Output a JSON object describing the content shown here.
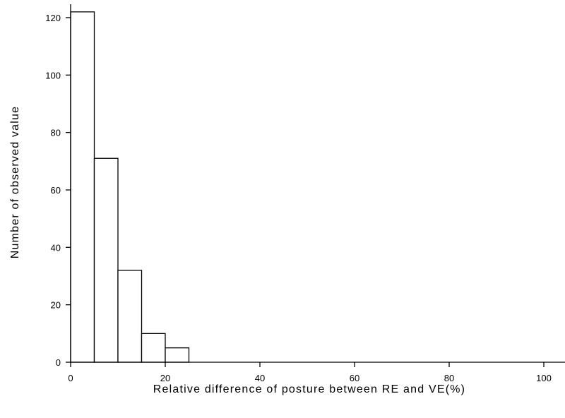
{
  "chart_data": {
    "type": "bar",
    "title": "",
    "xlabel": "Relative difference of posture between RE and VE(%)",
    "ylabel": "Number of observed value",
    "xlim": [
      0,
      105
    ],
    "ylim": [
      0,
      125
    ],
    "x_ticks": [
      0,
      20,
      40,
      60,
      80,
      100
    ],
    "y_ticks": [
      0,
      20,
      40,
      60,
      80,
      100,
      120
    ],
    "bin_width": 5,
    "bins": [
      {
        "start": 0,
        "end": 5,
        "value": 122
      },
      {
        "start": 5,
        "end": 10,
        "value": 71
      },
      {
        "start": 10,
        "end": 15,
        "value": 32
      },
      {
        "start": 15,
        "end": 20,
        "value": 10
      },
      {
        "start": 20,
        "end": 25,
        "value": 5
      }
    ],
    "grid": false,
    "legend": "none"
  }
}
